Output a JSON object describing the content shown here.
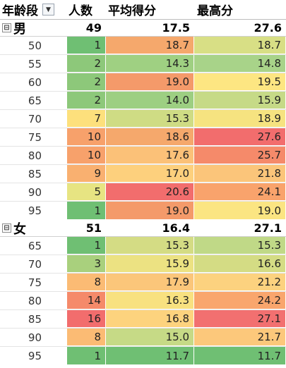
{
  "header": {
    "col_age": "年龄段",
    "col_count": "人数",
    "col_avg": "平均得分",
    "col_max": "最高分",
    "filter_icon": "dropdown-arrow-icon"
  },
  "groups": [
    {
      "name": "男",
      "toggle": "⊟",
      "count": "49",
      "avg": "17.5",
      "max": "27.6",
      "rows": [
        {
          "age": "50",
          "count": "1",
          "avg": "18.7",
          "max": "18.7",
          "c_count": "#6fbf73",
          "c_avg": "#f5a86c",
          "c_max": "#d8df85"
        },
        {
          "age": "55",
          "count": "2",
          "avg": "14.3",
          "max": "14.8",
          "c_count": "#8dc87a",
          "c_avg": "#9fd082",
          "c_max": "#a8d389"
        },
        {
          "age": "60",
          "count": "2",
          "avg": "19.0",
          "max": "19.5",
          "c_count": "#8dc87a",
          "c_avg": "#f49a6a",
          "c_max": "#fde682"
        },
        {
          "age": "65",
          "count": "2",
          "avg": "14.0",
          "max": "15.9",
          "c_count": "#8dc87a",
          "c_avg": "#9dcf82",
          "c_max": "#c6da87"
        },
        {
          "age": "70",
          "count": "7",
          "avg": "15.3",
          "max": "18.9",
          "c_count": "#fde07c",
          "c_avg": "#cfdc84",
          "c_max": "#f6e380"
        },
        {
          "age": "75",
          "count": "10",
          "avg": "18.6",
          "max": "27.6",
          "c_count": "#f7a16b",
          "c_avg": "#f5a86c",
          "c_max": "#f26d6d"
        },
        {
          "age": "80",
          "count": "10",
          "avg": "17.6",
          "max": "25.7",
          "c_count": "#f7a16b",
          "c_avg": "#fbc178",
          "c_max": "#f58a6a"
        },
        {
          "age": "85",
          "count": "9",
          "avg": "17.0",
          "max": "21.8",
          "c_count": "#f9b070",
          "c_avg": "#fdd07d",
          "c_max": "#fbc57a"
        },
        {
          "age": "90",
          "count": "5",
          "avg": "20.6",
          "max": "24.1",
          "c_count": "#e7e482",
          "c_avg": "#f26d6d",
          "c_max": "#f9a36c"
        },
        {
          "age": "95",
          "count": "1",
          "avg": "19.0",
          "max": "19.0",
          "c_count": "#6fbf73",
          "c_avg": "#f49a6a",
          "c_max": "#fbe582"
        }
      ]
    },
    {
      "name": "女",
      "toggle": "⊟",
      "count": "51",
      "avg": "16.4",
      "max": "27.1",
      "rows": [
        {
          "age": "65",
          "count": "1",
          "avg": "15.3",
          "max": "15.3",
          "c_count": "#6fbf73",
          "c_avg": "#d4dc84",
          "c_max": "#c0d987"
        },
        {
          "age": "70",
          "count": "3",
          "avg": "15.9",
          "max": "16.6",
          "c_count": "#a9d07d",
          "c_avg": "#ece282",
          "c_max": "#d4dc84"
        },
        {
          "age": "75",
          "count": "8",
          "avg": "17.9",
          "max": "21.2",
          "c_count": "#fbbb74",
          "c_avg": "#fbc67a",
          "c_max": "#fcd27f"
        },
        {
          "age": "80",
          "count": "14",
          "avg": "16.3",
          "max": "24.2",
          "c_count": "#f58a6a",
          "c_avg": "#f8e180",
          "c_max": "#f9a66d"
        },
        {
          "age": "85",
          "count": "16",
          "avg": "16.8",
          "max": "27.1",
          "c_count": "#f26d6d",
          "c_avg": "#fdd37e",
          "c_max": "#f27070"
        },
        {
          "age": "90",
          "count": "8",
          "avg": "15.0",
          "max": "21.7",
          "c_count": "#fbbb74",
          "c_avg": "#c6da86",
          "c_max": "#fcc87b"
        },
        {
          "age": "95",
          "count": "1",
          "avg": "11.7",
          "max": "11.7",
          "c_count": "#6fbf73",
          "c_avg": "#6fbf73",
          "c_max": "#6fbf73"
        }
      ]
    }
  ]
}
